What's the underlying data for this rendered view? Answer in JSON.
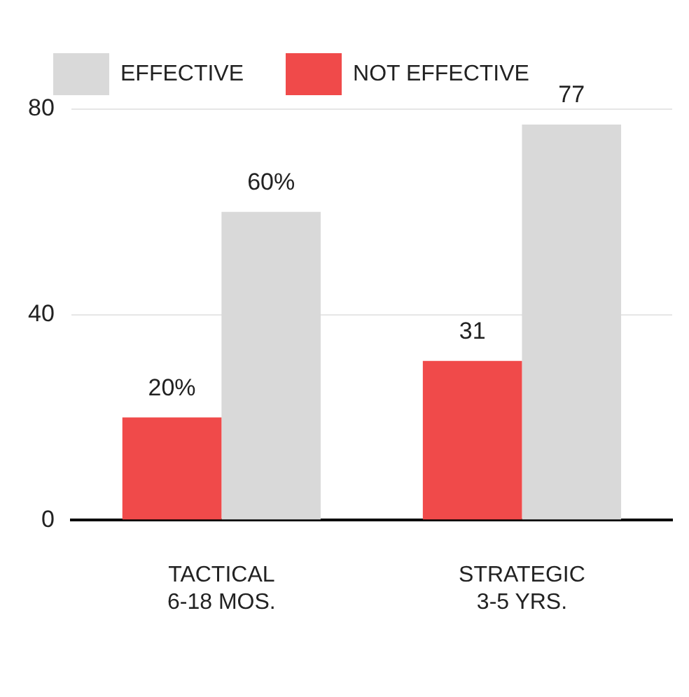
{
  "chart_data": {
    "type": "bar",
    "categories": [
      "TACTICAL\n6-18 MOS.",
      "STRATEGIC\n3-5 YRS."
    ],
    "series": [
      {
        "name": "NOT EFFECTIVE",
        "color": "#f04a4a",
        "values": [
          20,
          31
        ],
        "value_labels": [
          "20%",
          "31"
        ]
      },
      {
        "name": "EFFECTIVE",
        "color": "#d9d9d9",
        "values": [
          60,
          77
        ],
        "value_labels": [
          "60%",
          "77"
        ]
      }
    ],
    "ylim": [
      0,
      80
    ],
    "yticks": [
      0,
      40,
      80
    ],
    "grid": "y",
    "legend": "top left"
  }
}
